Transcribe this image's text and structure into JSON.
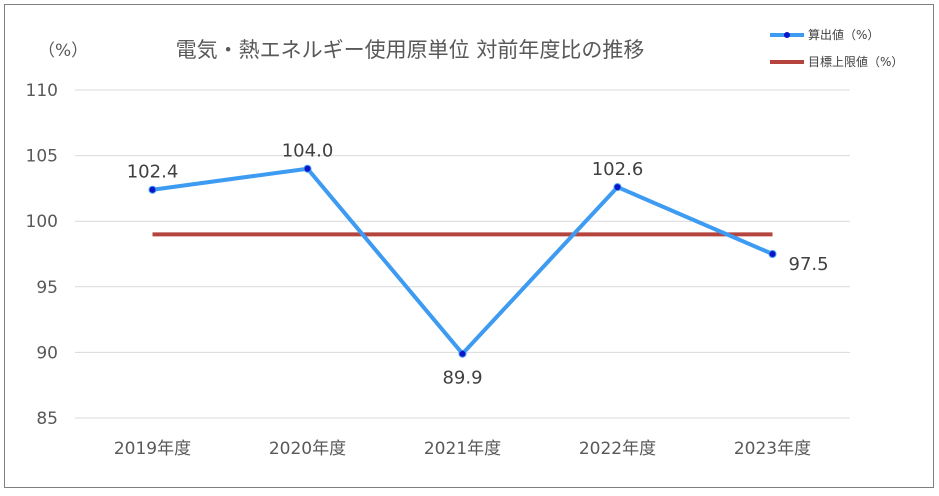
{
  "chart_data": {
    "type": "line",
    "title": "電気・熱エネルギー使用原単位 対前年度比の推移",
    "ylabel": "（%）",
    "xlabel": "",
    "categories": [
      "2019年度",
      "2020年度",
      "2021年度",
      "2022年度",
      "2023年度"
    ],
    "series": [
      {
        "name": "算出値（%）",
        "values": [
          102.4,
          104.0,
          89.9,
          102.6,
          97.5
        ],
        "color": "#3d9bf2",
        "marker_color": "#0a14c8",
        "data_labels": [
          "102.4",
          "104.0",
          "89.9",
          "102.6",
          "97.5"
        ]
      },
      {
        "name": "目標上限値（%）",
        "values": [
          99,
          99,
          99,
          99,
          99
        ],
        "color": "#b5443e"
      }
    ],
    "ylim": [
      85,
      110
    ],
    "yticks": [
      110,
      105,
      100,
      95,
      90,
      85
    ],
    "grid": true,
    "legend_position": "top-right"
  }
}
